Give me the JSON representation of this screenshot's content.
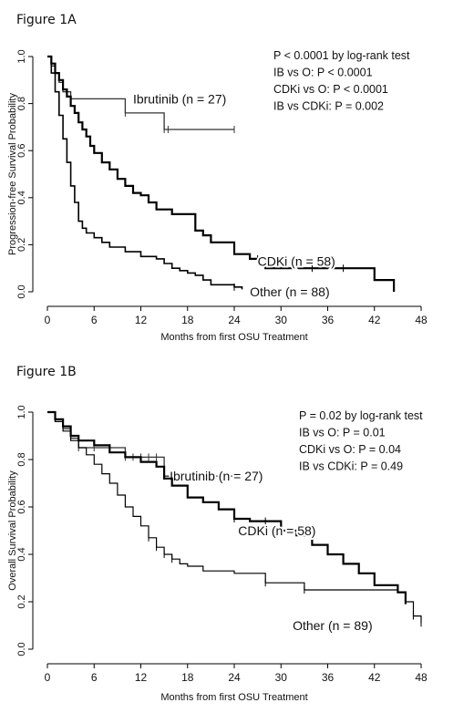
{
  "chart_data": [
    {
      "type": "line",
      "figure_label": "Figure 1A",
      "xlabel": "Months from first OSU Treatment",
      "ylabel": "Progression-free Survival Probability",
      "xlim": [
        0,
        48
      ],
      "ylim": [
        0,
        1
      ],
      "x_ticks": [
        0,
        6,
        12,
        18,
        24,
        30,
        36,
        42,
        48
      ],
      "y_ticks": [
        0.0,
        0.2,
        0.4,
        0.6,
        0.8,
        1.0
      ],
      "y_tick_labels": [
        "0.0",
        "0.2",
        "0.4",
        "0.6",
        "0.8",
        "1.0"
      ],
      "grid": false,
      "annotations": [
        "P < 0.0001 by log-rank test",
        "IB vs O: P < 0.0001",
        "CDKi vs O: P < 0.0001",
        "IB vs CDKi: P = 0.002"
      ],
      "series": [
        {
          "name": "Ibrutinib (n = 27)",
          "color": "#333333",
          "x": [
            0,
            0.5,
            1,
            1.5,
            2,
            3,
            5,
            10,
            15,
            24
          ],
          "y": [
            1.0,
            0.96,
            0.93,
            0.89,
            0.85,
            0.82,
            0.82,
            0.76,
            0.69,
            0.69
          ],
          "censor_x": [
            10,
            15,
            15.5,
            24
          ]
        },
        {
          "name": "CDKi (n = 58)",
          "color": "#000000",
          "x": [
            0,
            0.5,
            1,
            1.5,
            2,
            2.5,
            3,
            3.5,
            4,
            4.5,
            5,
            5.5,
            6,
            7,
            8,
            9,
            10,
            11,
            12,
            13,
            14,
            15,
            16,
            18,
            19,
            20,
            21,
            24,
            26,
            28,
            34,
            38,
            41,
            42,
            44,
            44.5
          ],
          "y": [
            1.0,
            0.97,
            0.93,
            0.9,
            0.86,
            0.83,
            0.79,
            0.76,
            0.72,
            0.69,
            0.66,
            0.62,
            0.59,
            0.55,
            0.52,
            0.48,
            0.45,
            0.42,
            0.41,
            0.38,
            0.35,
            0.35,
            0.33,
            0.33,
            0.26,
            0.24,
            0.21,
            0.16,
            0.14,
            0.1,
            0.1,
            0.1,
            0.1,
            0.05,
            0.05,
            0.0
          ],
          "censor_x": [
            27,
            34,
            38
          ]
        },
        {
          "name": "Other (n = 88)",
          "color": "#000000",
          "x": [
            0,
            0.5,
            1,
            1.5,
            2,
            2.5,
            3,
            3.5,
            4,
            4.5,
            5,
            6,
            7,
            8,
            10,
            12,
            14,
            15,
            16,
            17,
            18,
            19,
            20,
            21,
            24,
            25
          ],
          "y": [
            1.0,
            0.93,
            0.85,
            0.75,
            0.65,
            0.55,
            0.45,
            0.38,
            0.3,
            0.27,
            0.25,
            0.23,
            0.21,
            0.19,
            0.17,
            0.15,
            0.14,
            0.12,
            0.1,
            0.09,
            0.08,
            0.07,
            0.05,
            0.03,
            0.02,
            0.01
          ],
          "censor_x": [
            24
          ]
        }
      ]
    },
    {
      "type": "line",
      "figure_label": "Figure 1B",
      "xlabel": "Months from first OSU Treatment",
      "ylabel": "Overall Survival Probability",
      "xlim": [
        0,
        48
      ],
      "ylim": [
        0,
        1
      ],
      "x_ticks": [
        0,
        6,
        12,
        18,
        24,
        30,
        36,
        42,
        48
      ],
      "y_ticks": [
        0.0,
        0.2,
        0.4,
        0.6,
        0.8,
        1.0
      ],
      "y_tick_labels": [
        "0.0",
        "0.2",
        "0.4",
        "0.6",
        "0.8",
        "1.0"
      ],
      "grid": false,
      "annotations": [
        "P = 0.02 by log-rank test",
        "IB vs O: P = 0.01",
        "CDKi vs O: P = 0.04",
        "IB vs CDKi: P = 0.49"
      ],
      "series": [
        {
          "name": "Ibrutinib (n = 27)",
          "color": "#333333",
          "x": [
            0,
            1,
            2,
            3,
            4,
            6,
            8,
            10,
            15,
            24
          ],
          "y": [
            1.0,
            0.96,
            0.93,
            0.89,
            0.85,
            0.85,
            0.85,
            0.81,
            0.73,
            0.73
          ],
          "censor_x": [
            4,
            6,
            8,
            10,
            11,
            12,
            13,
            14,
            15,
            16,
            24
          ]
        },
        {
          "name": "CDKi (n = 58)",
          "color": "#000000",
          "x": [
            0,
            1,
            2,
            3,
            4,
            6,
            8,
            10,
            12,
            14,
            15,
            16,
            18,
            20,
            22,
            24,
            26,
            30,
            32,
            34,
            36,
            38,
            40,
            42,
            45,
            46
          ],
          "y": [
            1.0,
            0.97,
            0.94,
            0.9,
            0.88,
            0.86,
            0.83,
            0.81,
            0.79,
            0.77,
            0.72,
            0.69,
            0.64,
            0.62,
            0.59,
            0.55,
            0.54,
            0.5,
            0.48,
            0.44,
            0.4,
            0.36,
            0.32,
            0.27,
            0.24,
            0.19
          ],
          "censor_x": [
            24,
            28
          ]
        },
        {
          "name": "Other (n = 89)",
          "color": "#000000",
          "x": [
            0,
            1,
            2,
            3,
            4,
            5,
            6,
            7,
            8,
            9,
            10,
            11,
            12,
            13,
            14,
            15,
            16,
            17,
            18,
            20,
            24,
            28,
            33,
            45,
            46,
            47,
            48
          ],
          "y": [
            1.0,
            0.96,
            0.92,
            0.88,
            0.85,
            0.82,
            0.78,
            0.74,
            0.7,
            0.65,
            0.6,
            0.56,
            0.52,
            0.47,
            0.43,
            0.4,
            0.38,
            0.36,
            0.35,
            0.33,
            0.32,
            0.28,
            0.25,
            0.24,
            0.2,
            0.14,
            0.11
          ],
          "censor_x": [
            13,
            14,
            15,
            16,
            28,
            33,
            47,
            48
          ]
        }
      ]
    }
  ]
}
